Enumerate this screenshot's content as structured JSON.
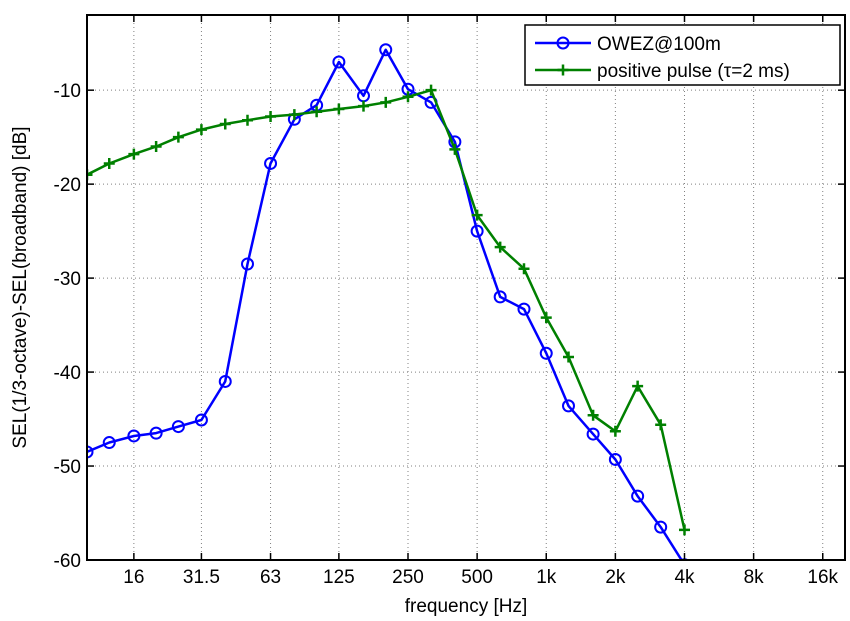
{
  "chart_data": {
    "type": "line",
    "title": "",
    "xlabel": "frequency [Hz]",
    "ylabel": "SEL(1/3-octave)-SEL(broadband) [dB]",
    "x_scale": "log",
    "xlim": [
      10,
      20000
    ],
    "ylim": [
      -60,
      -2
    ],
    "grid": true,
    "legend_position": "top-right",
    "x_ticks": [
      16,
      31.5,
      63,
      125,
      250,
      500,
      1000,
      2000,
      4000,
      8000,
      16000
    ],
    "x_tick_labels": [
      "16",
      "31.5",
      "63",
      "125",
      "250",
      "500",
      "1k",
      "2k",
      "4k",
      "8k",
      "16k"
    ],
    "y_ticks": [
      -60,
      -50,
      -40,
      -30,
      -20,
      -10
    ],
    "y_tick_labels": [
      "-60",
      "-50",
      "-40",
      "-30",
      "-20",
      "-10"
    ],
    "x": [
      10,
      12.5,
      16,
      20,
      25,
      31.5,
      40,
      50,
      63,
      80,
      100,
      125,
      160,
      200,
      250,
      315,
      400,
      500,
      630,
      800,
      1000,
      1250,
      1600,
      2000,
      2500,
      3150,
      4000
    ],
    "series": [
      {
        "name": "OWEZ@100m",
        "color": "#0000ff",
        "marker": "circle",
        "values": [
          -48.5,
          -47.5,
          -46.8,
          -46.5,
          -45.8,
          -45.1,
          -41.0,
          -28.5,
          -17.8,
          -13.1,
          -11.6,
          -7.0,
          -10.6,
          -5.7,
          -9.9,
          -11.3,
          -15.5,
          -25.0,
          -32.0,
          -33.3,
          -38.0,
          -43.6,
          -46.6,
          -49.3,
          -53.2,
          -56.5,
          -60.5
        ]
      },
      {
        "name": "positive pulse (τ=2 ms)",
        "color": "#008000",
        "marker": "plus",
        "values": [
          -19.0,
          -17.8,
          -16.8,
          -16.0,
          -15.0,
          -14.2,
          -13.6,
          -13.2,
          -12.8,
          -12.6,
          -12.3,
          -12.0,
          -11.7,
          -11.3,
          -10.7,
          -10.0,
          -16.3,
          -23.3,
          -26.7,
          -29.0,
          -34.2,
          -38.4,
          -44.6,
          -46.3,
          -41.5,
          -45.6,
          -56.8
        ]
      }
    ]
  }
}
